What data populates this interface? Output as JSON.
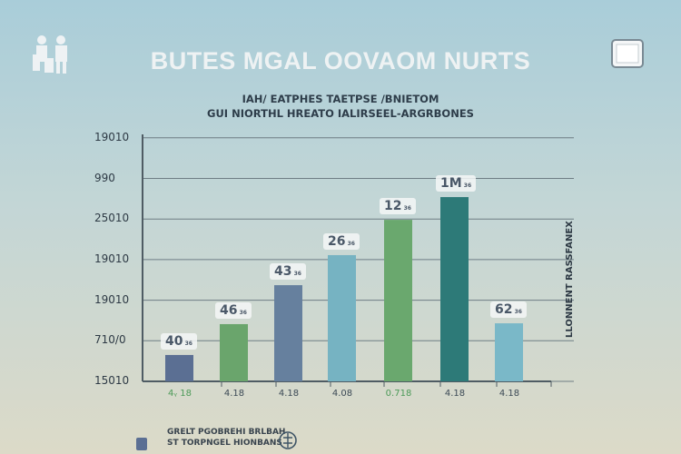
{
  "chart_data": {
    "type": "bar",
    "title": "BUTES MGAL OOVAOM NURTS",
    "subtitle": [
      "IAH/ EATPHES TAETPSE /BNIETOM",
      "GUI NIORTHL HREATO IALIRSEEL-ARGRBONES"
    ],
    "yticks": [
      "19010",
      "990",
      "25010",
      "19010",
      "19010",
      "710/0",
      "15010"
    ],
    "ylabel": "LLONNENT RASSFANEX",
    "categories": [
      "4ᵧ 18",
      "4.18",
      "4.18",
      "4.08",
      "0.718",
      "4.18",
      "4.18"
    ],
    "data_labels": [
      "40",
      "46",
      "43",
      "26",
      "12",
      "1M",
      "62"
    ],
    "values": [
      0.65,
      1.41,
      2.37,
      3.11,
      3.98,
      4.54,
      1.43
    ],
    "ylim": [
      0,
      6
    ],
    "grid": true,
    "colors": [
      "#5b6f93",
      "#6aa56c",
      "#66809e",
      "#76b3c2",
      "#6aa86e",
      "#2d7a78",
      "#7ab8c8"
    ],
    "legend": [
      "GRELT PGOBREHI BRLBAH",
      "ST TORPNGEL HIONBANS"
    ]
  },
  "icons": {
    "top_left": "people-icon",
    "top_right": "tv-icon",
    "legend_right": "globe-icon"
  }
}
